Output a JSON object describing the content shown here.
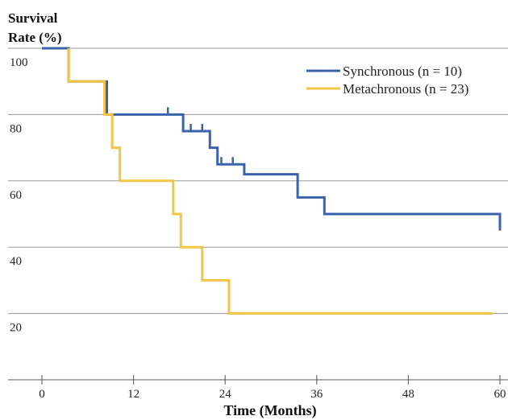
{
  "chart_data": {
    "type": "line",
    "step": true,
    "ylabel_lines": [
      "Survival",
      "Rate (%)"
    ],
    "xlabel": "Time (Months)",
    "xlim": [
      0,
      60
    ],
    "ylim": [
      0,
      100
    ],
    "x_ticks": [
      0,
      12,
      24,
      36,
      48,
      60
    ],
    "y_ticks": [
      20,
      40,
      60,
      80,
      100
    ],
    "grid": "horizontal",
    "legend_position": "top-right",
    "series": [
      {
        "name": "Synchronous (n = 10)",
        "color": "#3b62ad",
        "points": [
          [
            0,
            100
          ],
          [
            3.5,
            100
          ],
          [
            3.5,
            90
          ],
          [
            8.5,
            90
          ],
          [
            8.5,
            80
          ],
          [
            18.5,
            80
          ],
          [
            18.5,
            75
          ],
          [
            22,
            75
          ],
          [
            22,
            70
          ],
          [
            23,
            70
          ],
          [
            23,
            65
          ],
          [
            26.5,
            65
          ],
          [
            26.5,
            62
          ],
          [
            33.5,
            62
          ],
          [
            33.5,
            55
          ],
          [
            37,
            55
          ],
          [
            37,
            50
          ],
          [
            60,
            50
          ],
          [
            60,
            45
          ]
        ],
        "censored": [
          [
            16.5,
            80
          ],
          [
            19.5,
            75
          ],
          [
            21,
            75
          ],
          [
            23.5,
            65
          ],
          [
            25,
            65
          ]
        ]
      },
      {
        "name": "Metachronous (n = 23)",
        "color": "#f5c445",
        "points": [
          [
            3.5,
            100
          ],
          [
            3.5,
            90
          ],
          [
            8.2,
            90
          ],
          [
            8.2,
            80
          ],
          [
            9.2,
            80
          ],
          [
            9.2,
            70
          ],
          [
            10.2,
            70
          ],
          [
            10.2,
            60
          ],
          [
            17.2,
            60
          ],
          [
            17.2,
            50
          ],
          [
            18.2,
            50
          ],
          [
            18.2,
            40
          ],
          [
            21,
            40
          ],
          [
            21,
            30
          ],
          [
            24.5,
            30
          ],
          [
            24.5,
            20
          ],
          [
            59,
            20
          ]
        ],
        "censored": []
      }
    ]
  }
}
